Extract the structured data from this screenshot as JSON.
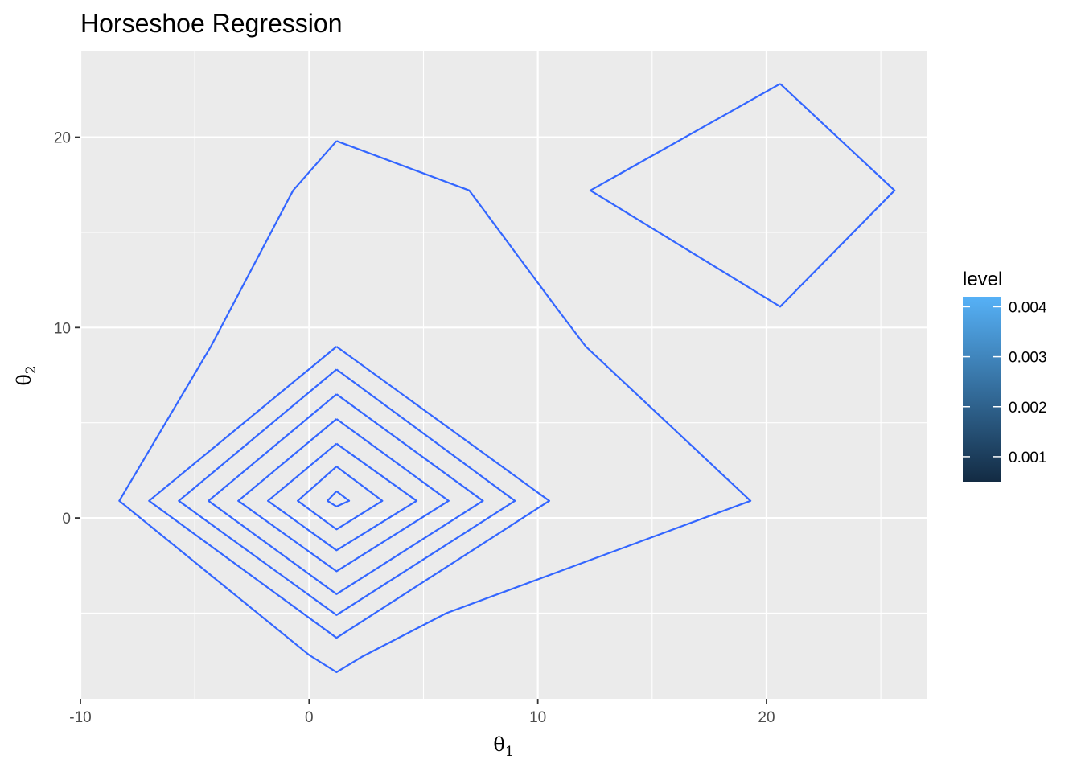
{
  "chart_data": {
    "type": "contour",
    "title": "Horseshoe Regression",
    "xlabel": {
      "symbol": "θ",
      "sub": "1"
    },
    "ylabel": {
      "symbol": "θ",
      "sub": "2"
    },
    "xlim": [
      -10,
      27
    ],
    "ylim": [
      -9.5,
      24.5
    ],
    "x_ticks": [
      -10,
      0,
      10,
      20
    ],
    "x_tick_labels": [
      "-10",
      "0",
      "10",
      "20"
    ],
    "x_minor": [
      -5,
      5,
      15,
      25
    ],
    "y_ticks": [
      0,
      10,
      20
    ],
    "y_tick_labels": [
      "0",
      "10",
      "20"
    ],
    "y_minor": [
      -5,
      5,
      15
    ],
    "grid": true,
    "line_color": "#3366FF",
    "panel_color": "#EBEBEB",
    "grid_color": "#FFFFFF",
    "contours": [
      {
        "points": [
          [
            1.2,
            1.4
          ],
          [
            1.75,
            0.9
          ],
          [
            1.2,
            0.6
          ],
          [
            0.8,
            0.9
          ],
          [
            1.2,
            1.4
          ]
        ]
      },
      {
        "points": [
          [
            1.2,
            2.7
          ],
          [
            3.2,
            0.9
          ],
          [
            1.2,
            -0.6
          ],
          [
            -0.5,
            0.9
          ],
          [
            1.2,
            2.7
          ]
        ]
      },
      {
        "points": [
          [
            1.2,
            3.9
          ],
          [
            4.7,
            0.9
          ],
          [
            1.2,
            -1.7
          ],
          [
            -1.8,
            0.9
          ],
          [
            1.2,
            3.9
          ]
        ]
      },
      {
        "points": [
          [
            1.2,
            5.2
          ],
          [
            6.1,
            0.9
          ],
          [
            1.2,
            -2.8
          ],
          [
            -3.1,
            0.9
          ],
          [
            1.2,
            5.2
          ]
        ]
      },
      {
        "points": [
          [
            1.2,
            6.5
          ],
          [
            7.6,
            0.9
          ],
          [
            1.2,
            -4.0
          ],
          [
            -4.4,
            0.9
          ],
          [
            1.2,
            6.5
          ]
        ]
      },
      {
        "points": [
          [
            1.2,
            7.8
          ],
          [
            9.0,
            0.9
          ],
          [
            1.2,
            -5.1
          ],
          [
            -5.7,
            0.9
          ],
          [
            1.2,
            7.8
          ]
        ]
      },
      {
        "points": [
          [
            1.2,
            9.0
          ],
          [
            10.5,
            0.9
          ],
          [
            1.2,
            -6.3
          ],
          [
            -7.0,
            0.9
          ],
          [
            1.2,
            9.0
          ]
        ]
      },
      {
        "points": [
          [
            1.2,
            19.8
          ],
          [
            7.0,
            17.2
          ],
          [
            10.9,
            10.9
          ],
          [
            12.1,
            9.0
          ],
          [
            19.3,
            0.9
          ],
          [
            6.0,
            -5.0
          ],
          [
            2.3,
            -7.3
          ],
          [
            1.2,
            -8.1
          ],
          [
            0.0,
            -7.2
          ],
          [
            -8.3,
            0.9
          ],
          [
            -4.3,
            9.0
          ],
          [
            -0.7,
            17.2
          ],
          [
            1.2,
            19.8
          ]
        ]
      },
      {
        "points": [
          [
            20.6,
            22.8
          ],
          [
            25.6,
            17.2
          ],
          [
            20.6,
            11.1
          ],
          [
            12.3,
            17.2
          ],
          [
            20.6,
            22.8
          ]
        ]
      }
    ],
    "legend": {
      "title": "level",
      "position": "right",
      "range": [
        0.0005,
        0.0042
      ],
      "low_color": "#132B43",
      "high_color": "#56B1F7",
      "breaks": [
        0.001,
        0.002,
        0.003,
        0.004
      ],
      "labels": [
        "0.001",
        "0.002",
        "0.003",
        "0.004"
      ]
    }
  }
}
